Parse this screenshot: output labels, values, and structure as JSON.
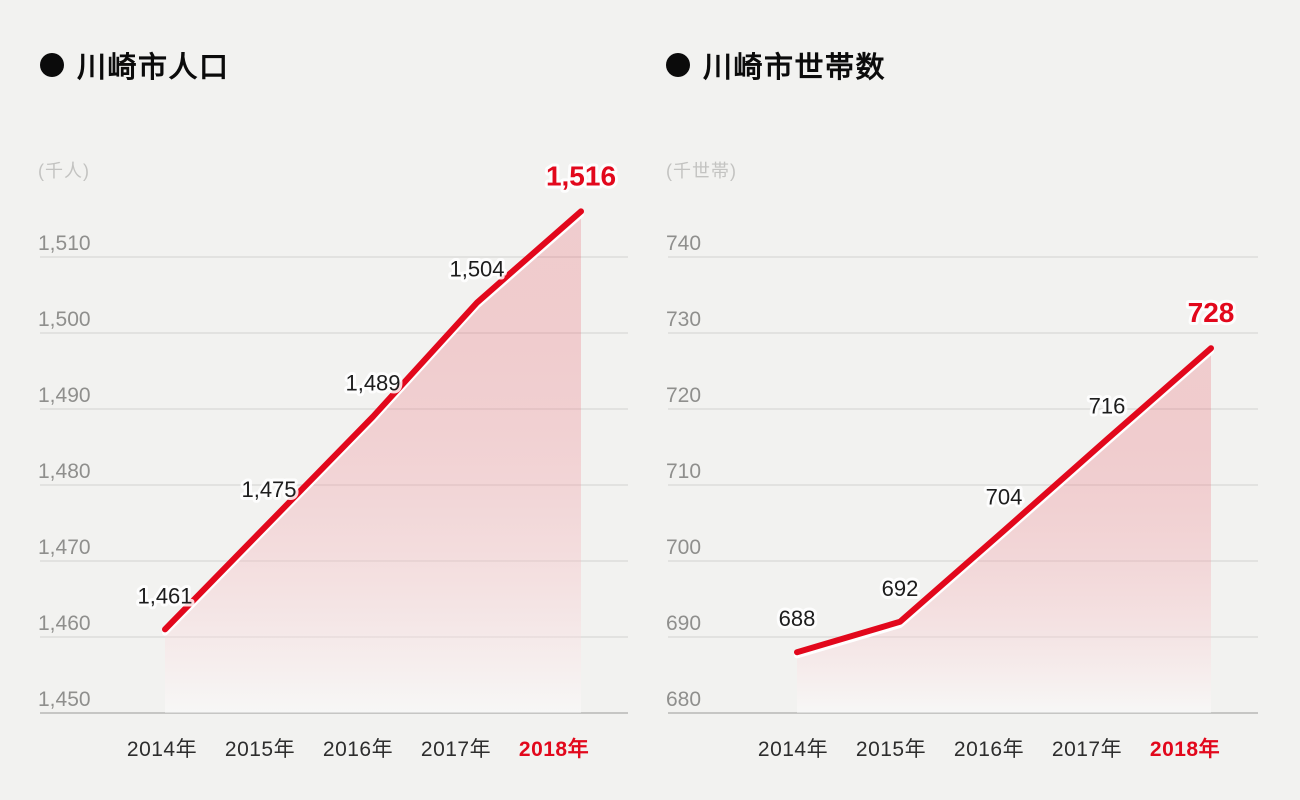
{
  "page": {
    "background": "#f2f2f0"
  },
  "colors": {
    "accent_red": "#e2081c",
    "grid": "#d9d9d7",
    "grid_bottom": "#c6c6c4",
    "ytick_gray": "#8f8f8d",
    "xtick_dark": "#2d2d2d",
    "value_label_dark": "#1d1d1d",
    "unit_gray": "#c3c3c1",
    "title_black": "#0b0b0b",
    "halo_white": "#ffffff",
    "area_top": "#e1081c",
    "area_bottom": "#ffffff"
  },
  "chart_data": [
    {
      "type": "area",
      "title": "川崎市人口",
      "bullet": "●",
      "unit": "(千人)",
      "categories": [
        "2014年",
        "2015年",
        "2016年",
        "2017年",
        "2018年"
      ],
      "values": [
        1461,
        1475,
        1489,
        1504,
        1516
      ],
      "value_labels": [
        "1,461",
        "1,475",
        "1,489",
        "1,504",
        "1,516"
      ],
      "highlight_index": 4,
      "yticks": [
        1510,
        1500,
        1490,
        1480,
        1470,
        1460,
        1450
      ],
      "ytick_labels": [
        "1,510",
        "1,500",
        "1,490",
        "1,480",
        "1,470",
        "1,460",
        "1,450"
      ],
      "ylim": [
        1450,
        1516
      ],
      "grid": true,
      "legend": false
    },
    {
      "type": "area",
      "title": "川崎市世帯数",
      "bullet": "●",
      "unit": "(千世帯)",
      "categories": [
        "2014年",
        "2015年",
        "2016年",
        "2017年",
        "2018年"
      ],
      "values": [
        688,
        692,
        704,
        716,
        728
      ],
      "value_labels": [
        "688",
        "692",
        "704",
        "716",
        "728"
      ],
      "highlight_index": 4,
      "yticks": [
        740,
        730,
        720,
        710,
        700,
        690,
        680
      ],
      "ytick_labels": [
        "740",
        "730",
        "720",
        "710",
        "700",
        "690",
        "680"
      ],
      "ylim": [
        680,
        728
      ],
      "grid": true,
      "legend": false
    }
  ]
}
